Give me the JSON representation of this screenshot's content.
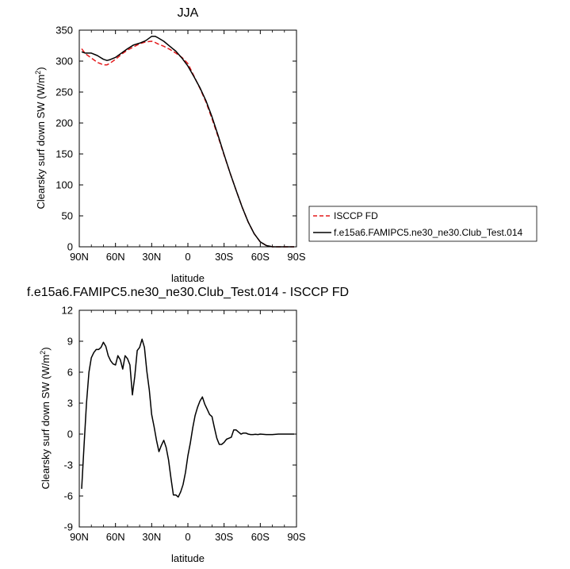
{
  "colors": {
    "model": "#000000",
    "obs": "#e41a1c",
    "axes": "#000000",
    "background": "#ffffff"
  },
  "chart_data": [
    {
      "type": "line",
      "title": "JJA",
      "xlabel": "latitude",
      "ylabel": "Clearsky surf down SW (W/m",
      "ylabel_sup": "2",
      "ylabel_end": ")",
      "xlim": [
        90,
        -90
      ],
      "ylim": [
        0,
        350
      ],
      "xticks": [
        90,
        60,
        30,
        0,
        -30,
        -60,
        -90
      ],
      "xtick_labels": [
        "90N",
        "60N",
        "30N",
        "0",
        "30S",
        "60S",
        "90S"
      ],
      "yticks": [
        0,
        50,
        100,
        150,
        200,
        250,
        300,
        350
      ],
      "ytick_labels": [
        "0",
        "50",
        "100",
        "150",
        "200",
        "250",
        "300",
        "350"
      ],
      "legend_position": "right",
      "series": [
        {
          "name": "ISCCP FD",
          "style": "dashed",
          "color": "#e41a1c",
          "x": [
            88,
            85,
            80,
            75,
            70,
            67,
            65,
            60,
            55,
            50,
            45,
            40,
            35,
            30,
            27,
            25,
            20,
            15,
            10,
            5,
            0,
            -5,
            -10,
            -15,
            -20,
            -25,
            -30,
            -35,
            -40,
            -45,
            -50,
            -55,
            -60,
            -65,
            -70,
            -75,
            -80,
            -85,
            -88
          ],
          "y": [
            320,
            312,
            305,
            298,
            294,
            294,
            296,
            303,
            311,
            318,
            323,
            328,
            331,
            332,
            330,
            328,
            324,
            319,
            313,
            306,
            296,
            276,
            256,
            234,
            207,
            178,
            148,
            119,
            91,
            64,
            40,
            21,
            8,
            2,
            0,
            0,
            0,
            0,
            0
          ]
        },
        {
          "name": "f.e15a6.FAMIPC5.ne30_ne30.Club_Test.014",
          "style": "solid",
          "color": "#000000",
          "x": [
            88,
            85,
            80,
            75,
            70,
            67,
            65,
            60,
            55,
            50,
            45,
            40,
            35,
            30,
            27,
            25,
            20,
            15,
            10,
            5,
            0,
            -5,
            -10,
            -15,
            -20,
            -25,
            -30,
            -35,
            -40,
            -45,
            -50,
            -55,
            -60,
            -65,
            -70,
            -75,
            -80,
            -85,
            -88
          ],
          "y": [
            315,
            313,
            313,
            309,
            303,
            301,
            302,
            306,
            313,
            320,
            326,
            329,
            333,
            340,
            340,
            338,
            332,
            324,
            316,
            305,
            292,
            275,
            257,
            236,
            210,
            180,
            149,
            119,
            91,
            64,
            40,
            21,
            8,
            2,
            0,
            0,
            0,
            0,
            0
          ]
        }
      ]
    },
    {
      "type": "line",
      "title": "f.e15a6.FAMIPC5.ne30_ne30.Club_Test.014 - ISCCP FD",
      "xlabel": "latitude",
      "ylabel": "Clearsky surf down SW (W/m",
      "ylabel_sup": "2",
      "ylabel_end": ")",
      "xlim": [
        90,
        -90
      ],
      "ylim": [
        -9,
        12
      ],
      "xticks": [
        90,
        60,
        30,
        0,
        -30,
        -60,
        -90
      ],
      "xtick_labels": [
        "90N",
        "60N",
        "30N",
        "0",
        "30S",
        "60S",
        "90S"
      ],
      "yticks": [
        -9,
        -6,
        -3,
        0,
        3,
        6,
        9,
        12
      ],
      "ytick_labels": [
        "-9",
        "-6",
        "-3",
        "0",
        "3",
        "6",
        "9",
        "12"
      ],
      "series": [
        {
          "style": "solid",
          "color": "#000000",
          "x": [
            88,
            86,
            84,
            82,
            80,
            78,
            76,
            74,
            72,
            70,
            68,
            66,
            64,
            62,
            60,
            58,
            56,
            54,
            52,
            50,
            48,
            46,
            44,
            42,
            40,
            38,
            36,
            34,
            32,
            30,
            28,
            26,
            24,
            22,
            20,
            18,
            16,
            14,
            12,
            10,
            8,
            6,
            4,
            2,
            0,
            -2,
            -4,
            -6,
            -8,
            -10,
            -12,
            -14,
            -16,
            -18,
            -20,
            -22,
            -24,
            -26,
            -28,
            -30,
            -32,
            -34,
            -36,
            -38,
            -40,
            -42,
            -44,
            -46,
            -48,
            -50,
            -52,
            -54,
            -56,
            -58,
            -60,
            -65,
            -70,
            -75,
            -80,
            -85,
            -88
          ],
          "y": [
            -5.3,
            -1.0,
            3.0,
            6.0,
            7.4,
            7.9,
            8.2,
            8.2,
            8.4,
            8.9,
            8.5,
            7.6,
            7.1,
            6.8,
            6.7,
            7.6,
            7.2,
            6.3,
            7.6,
            7.3,
            6.7,
            3.8,
            5.6,
            8.1,
            8.4,
            9.2,
            8.4,
            6.1,
            4.3,
            1.9,
            0.7,
            -0.6,
            -1.7,
            -1.1,
            -0.6,
            -1.3,
            -2.5,
            -4.3,
            -5.9,
            -5.9,
            -6.1,
            -5.6,
            -4.9,
            -3.7,
            -2.1,
            -0.9,
            0.6,
            1.8,
            2.6,
            3.2,
            3.6,
            2.9,
            2.4,
            1.9,
            1.7,
            0.6,
            -0.4,
            -1.0,
            -1.0,
            -0.8,
            -0.5,
            -0.4,
            -0.3,
            0.4,
            0.4,
            0.2,
            0.0,
            0.1,
            0.1,
            0.0,
            -0.05,
            -0.05,
            -0.02,
            -0.05,
            0.0,
            -0.05,
            -0.05,
            0.0,
            0.0,
            0.0,
            0.0
          ]
        }
      ]
    }
  ]
}
